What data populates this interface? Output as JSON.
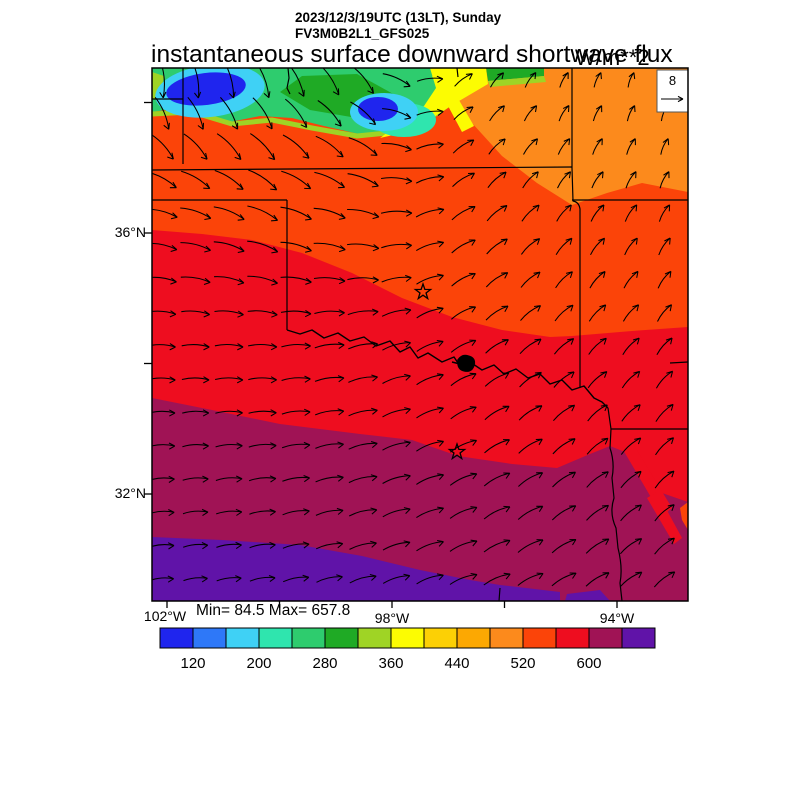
{
  "header": {
    "datetime": "2023/12/3/19UTC (13LT), Sunday",
    "model_run": "FV3M0B2L1_GFS025",
    "title": "instantaneous surface downward shortwave flux",
    "units": "W/m**2"
  },
  "axes": {
    "lat_labels": [
      "36°N",
      "32°N"
    ],
    "lon_labels": [
      "102°W",
      "98°W",
      "94°W"
    ],
    "minmax_label": "Min= 84.5 Max= 657.8"
  },
  "reference_vector": {
    "label": "8"
  },
  "chart_data": {
    "type": "heatmap",
    "title": "instantaneous surface downward shortwave flux",
    "units": "W/m**2",
    "valid_time": "2023/12/3/19UTC (13LT), Sunday",
    "model": "FV3M0B2L1_GFS025",
    "stat_min": 84.5,
    "stat_max": 657.8,
    "lat_ticks_deg_n": [
      38,
      36,
      34,
      32
    ],
    "lon_ticks_deg_w": [
      102,
      100,
      98,
      96,
      94
    ],
    "map_extent": {
      "lon_w": [
        102.3,
        92.7
      ],
      "lat_n": [
        30.4,
        38.5
      ]
    },
    "colorbar": {
      "levels": [
        80,
        120,
        160,
        200,
        240,
        280,
        320,
        360,
        400,
        440,
        480,
        520,
        560,
        600,
        640,
        680
      ],
      "tick_labels": [
        "120",
        "200",
        "280",
        "360",
        "440",
        "520",
        "600"
      ],
      "colors": [
        "#1F25EE",
        "#2E78F8",
        "#3FD1F5",
        "#2FE5AE",
        "#2ECC6E",
        "#1FAA25",
        "#9FD425",
        "#FCFC02",
        "#FCD005",
        "#FCA802",
        "#FC8A1C",
        "#FB4409",
        "#EE0D1F",
        "#A01355",
        "#6013A8"
      ]
    },
    "wind": {
      "reference_speed": 8,
      "pattern": "northerly flow in the cloudy northwest, turning westerly across the south and south-southwesterly to southerly in the east and northeast"
    },
    "field_summary": [
      {
        "region": "northwest corner cloud band",
        "flux_wm2": "100-400 (blue/cyan/green/yellow patches)"
      },
      {
        "region": "northeast",
        "flux_wm2": "480-520 orange"
      },
      {
        "region": "north-central band",
        "flux_wm2": "520-560 orange-red"
      },
      {
        "region": "central (OK / N-TX)",
        "flux_wm2": "560-600 red"
      },
      {
        "region": "south",
        "flux_wm2": "600-640 dark magenta"
      },
      {
        "region": "southwest / bottom",
        "flux_wm2": "640-680 purple"
      }
    ],
    "landmarks": [
      "state borders",
      "Red River",
      "lake on Red River",
      "two star city markers"
    ]
  }
}
